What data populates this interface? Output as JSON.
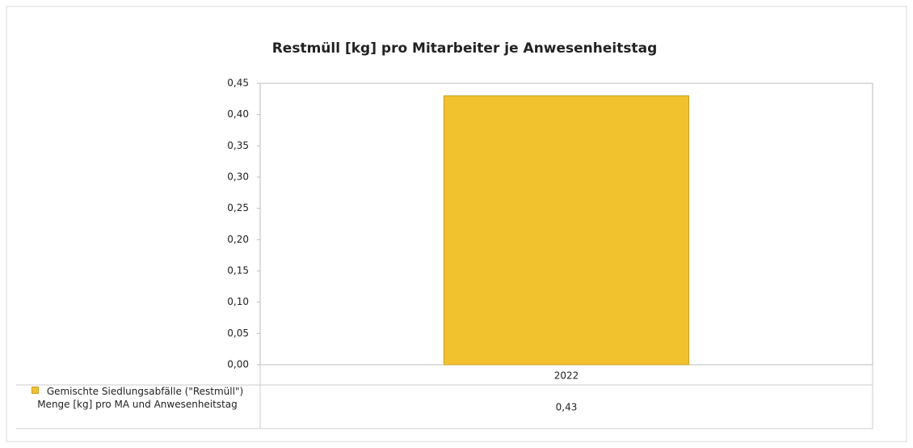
{
  "chart_data": {
    "type": "bar",
    "title": "Restmüll [kg] pro Mitarbeiter je Anwesenheitstag",
    "categories": [
      "2022"
    ],
    "series": [
      {
        "name": "Gemischte Siedlungsabfälle (\"Restmüll\") Menge [kg] pro MA und Anwesenheitstag",
        "color": "#f2c12e",
        "values": [
          0.43
        ],
        "value_labels": [
          "0,43"
        ]
      }
    ],
    "ylim": [
      0,
      0.45
    ],
    "yticks": [
      {
        "value": 0,
        "label": "0,00"
      },
      {
        "value": 0.05,
        "label": "0,05"
      },
      {
        "value": 0.1,
        "label": "0,10"
      },
      {
        "value": 0.15,
        "label": "0,15"
      },
      {
        "value": 0.2,
        "label": "0,20"
      },
      {
        "value": 0.25,
        "label": "0,25"
      },
      {
        "value": 0.3,
        "label": "0,30"
      },
      {
        "value": 0.35,
        "label": "0,35"
      },
      {
        "value": 0.4,
        "label": "0,40"
      },
      {
        "value": 0.45,
        "label": "0,45"
      }
    ],
    "grid": false
  }
}
